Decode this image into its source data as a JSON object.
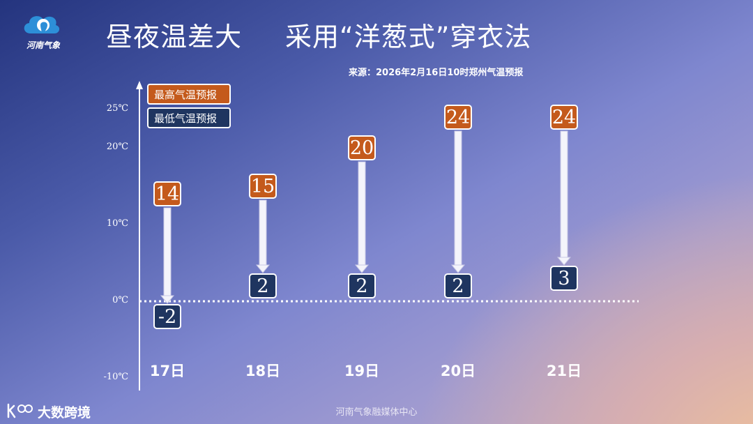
{
  "logo": {
    "text": "河南气象",
    "icon": "elephant-cloud-logo"
  },
  "header": {
    "title": "昼夜温差大",
    "subtitle": "采用“洋葱式”穿衣法"
  },
  "source_note": "来源：2026年2月16日10时郑州气温预报",
  "footer": {
    "credit": "河南气象融媒体中心",
    "brand": "大数跨境",
    "brand_icon": "brand-logo-icon"
  },
  "colors": {
    "high": "#c45a1c",
    "low": "#1f3560",
    "text": "#ffffff"
  },
  "chart_data": {
    "type": "range-arrow",
    "legend": [
      "最高气温预报",
      "最低气温预报"
    ],
    "y_ticks": [
      "25℃",
      "20℃",
      "10℃",
      "0℃",
      "-10℃"
    ],
    "y_tick_values": [
      25,
      20,
      10,
      0,
      -10
    ],
    "categories": [
      "17日",
      "18日",
      "19日",
      "20日",
      "21日"
    ],
    "series": [
      {
        "name": "最高气温预报",
        "values": [
          14,
          15,
          20,
          24,
          24
        ]
      },
      {
        "name": "最低气温预报",
        "values": [
          -2,
          2,
          2,
          2,
          3
        ]
      }
    ],
    "legend_placement": "top-left",
    "zero_line": "dotted",
    "grid": false
  }
}
